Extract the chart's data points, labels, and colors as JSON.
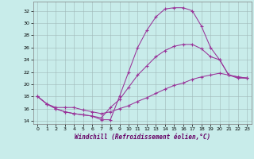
{
  "xlabel": "Windchill (Refroidissement éolien,°C)",
  "bg_color": "#c8ecea",
  "grid_color": "#a0b8b8",
  "line_color": "#993399",
  "xlim": [
    -0.5,
    23.5
  ],
  "ylim": [
    13.5,
    33.5
  ],
  "xticks": [
    0,
    1,
    2,
    3,
    4,
    5,
    6,
    7,
    8,
    9,
    10,
    11,
    12,
    13,
    14,
    15,
    16,
    17,
    18,
    19,
    20,
    21,
    22,
    23
  ],
  "yticks": [
    14,
    16,
    18,
    20,
    22,
    24,
    26,
    28,
    30,
    32
  ],
  "line1_x": [
    0,
    1,
    2,
    3,
    4,
    5,
    6,
    7,
    8,
    9,
    10,
    11,
    12,
    13,
    14,
    15,
    16,
    17,
    18,
    19,
    20,
    21,
    22,
    23
  ],
  "line1_y": [
    18.0,
    16.8,
    16.2,
    16.2,
    16.2,
    15.8,
    15.5,
    15.2,
    15.5,
    16.0,
    16.5,
    17.2,
    17.8,
    18.5,
    19.2,
    19.8,
    20.2,
    20.8,
    21.2,
    21.5,
    21.8,
    21.5,
    21.2,
    21.0
  ],
  "line2_x": [
    0,
    1,
    2,
    3,
    4,
    5,
    6,
    7,
    8,
    9,
    10,
    11,
    12,
    13,
    14,
    15,
    16,
    17,
    18,
    19,
    20,
    21,
    22,
    23
  ],
  "line2_y": [
    18.0,
    16.8,
    16.0,
    15.5,
    15.2,
    15.0,
    14.8,
    14.2,
    14.2,
    18.0,
    22.0,
    26.0,
    28.8,
    31.0,
    32.3,
    32.5,
    32.5,
    32.0,
    29.5,
    26.0,
    24.0,
    21.5,
    21.0,
    21.0
  ],
  "line3_x": [
    0,
    1,
    2,
    3,
    4,
    5,
    6,
    7,
    8,
    9,
    10,
    11,
    12,
    13,
    14,
    15,
    16,
    17,
    18,
    19,
    20,
    21,
    22,
    23
  ],
  "line3_y": [
    18.0,
    16.8,
    16.0,
    15.5,
    15.2,
    15.0,
    14.8,
    14.5,
    16.2,
    17.5,
    19.5,
    21.5,
    23.0,
    24.5,
    25.5,
    26.2,
    26.5,
    26.5,
    25.8,
    24.5,
    24.0,
    21.5,
    21.2,
    21.0
  ]
}
